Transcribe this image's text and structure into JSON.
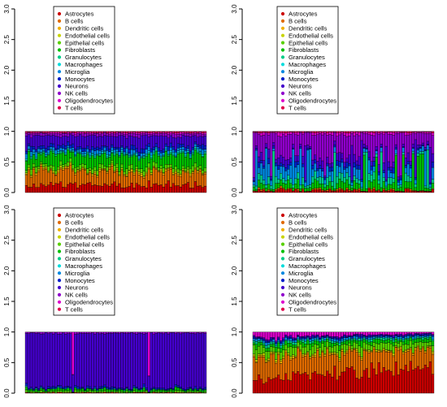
{
  "legend_labels": [
    "Astrocytes",
    "B cells",
    "Dendritic cells",
    "Endothelial cells",
    "Epithelial cells",
    "Fibroblasts",
    "Granulocytes",
    "Macrophages",
    "Microglia",
    "Monocytes",
    "Neurons",
    "NK cells",
    "Oligodendrocytes",
    "T cells"
  ],
  "colors": {
    "Astrocytes": "#cc0000",
    "B cells": "#e06a00",
    "Dendritic cells": "#f0b000",
    "Endothelial cells": "#c8d400",
    "Epithelial cells": "#58d000",
    "Fibroblasts": "#00c000",
    "Granulocytes": "#00cc88",
    "Macrophages": "#00dcdc",
    "Microglia": "#0088e0",
    "Monocytes": "#0020c8",
    "Neurons": "#4400cc",
    "NK cells": "#9000cc",
    "Oligodendrocytes": "#dd00cc",
    "T cells": "#e0004a"
  },
  "chart_data": [
    {
      "type": "bar",
      "stacked": true,
      "panel": "top-left",
      "ylim": [
        0,
        3
      ],
      "yticks": [
        "0.0",
        "0.5",
        "1.0",
        "1.5",
        "2.0",
        "2.5",
        "3.0"
      ],
      "n_bars": 74,
      "legend": "top-center",
      "mean_composition": {
        "Astrocytes": 0.12,
        "B cells": 0.22,
        "Dendritic cells": 0.02,
        "Endothelial cells": 0.02,
        "Epithelial cells": 0.06,
        "Fibroblasts": 0.18,
        "Granulocytes": 0.02,
        "Macrophages": 0.02,
        "Microglia": 0.05,
        "Monocytes": 0.05,
        "Neurons": 0.16,
        "NK cells": 0.04,
        "Oligodendrocytes": 0.02,
        "T cells": 0.02
      }
    },
    {
      "type": "bar",
      "stacked": true,
      "panel": "top-right",
      "ylim": [
        0,
        3
      ],
      "yticks": [
        "0.0",
        "0.5",
        "1.0",
        "1.5",
        "2.0",
        "2.5",
        "3.0"
      ],
      "n_bars": 74,
      "legend": "top-center",
      "mean_composition": {
        "Astrocytes": 0.04,
        "B cells": 0.02,
        "Fibroblasts": 0.1,
        "Granulocytes": 0.1,
        "Microglia": 0.14,
        "Monocytes": 0.06,
        "Neurons": 0.1,
        "NK cells": 0.38,
        "Oligodendrocytes": 0.04,
        "T cells": 0.02
      }
    },
    {
      "type": "bar",
      "stacked": true,
      "panel": "bottom-left",
      "ylim": [
        0,
        3
      ],
      "yticks": [
        "0.0",
        "0.5",
        "1.0",
        "1.5",
        "2.0",
        "2.5",
        "3.0"
      ],
      "n_bars": 74,
      "legend": "top-center",
      "mean_composition": {
        "Astrocytes": 0.01,
        "Epithelial cells": 0.02,
        "Fibroblasts": 0.03,
        "Microglia": 0.01,
        "Monocytes": 0.02,
        "Neurons": 0.89,
        "NK cells": 0.02
      }
    },
    {
      "type": "bar",
      "stacked": true,
      "panel": "bottom-right",
      "ylim": [
        0,
        3
      ],
      "yticks": [
        "0.0",
        "0.5",
        "1.0",
        "1.5",
        "2.0",
        "2.5",
        "3.0"
      ],
      "n_bars": 74,
      "legend": "top-center",
      "mean_composition": {
        "Astrocytes": 0.35,
        "B cells": 0.3,
        "Dendritic cells": 0.02,
        "Endothelial cells": 0.02,
        "Epithelial cells": 0.1,
        "Fibroblasts": 0.06,
        "Granulocytes": 0.03,
        "Microglia": 0.03,
        "Monocytes": 0.02,
        "Neurons": 0.02,
        "Oligodendrocytes": 0.05
      }
    }
  ]
}
